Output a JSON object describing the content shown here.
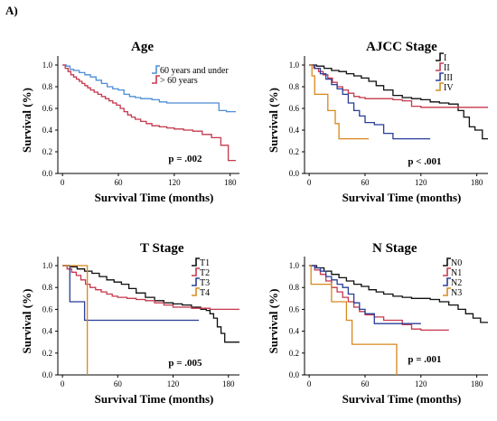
{
  "figure_label": "A)",
  "chart_data": [
    {
      "type": "line",
      "title": "Age",
      "xlabel": "Survival Time (months)",
      "ylabel": "Survival (%)",
      "xlim": [
        -5,
        190
      ],
      "ylim": [
        0,
        1.05
      ],
      "xticks": [
        0,
        60,
        120,
        180
      ],
      "yticks": [
        0.0,
        0.2,
        0.4,
        0.6,
        0.8,
        1.0
      ],
      "legend_position": "top-right",
      "grid": false,
      "annotation": "p = .002",
      "series": [
        {
          "name": "60 years and under",
          "color": "#4f8fd6",
          "x": [
            0,
            4,
            8,
            12,
            18,
            24,
            30,
            36,
            42,
            48,
            54,
            60,
            66,
            72,
            78,
            84,
            90,
            96,
            104,
            112,
            120,
            132,
            144,
            156,
            168,
            176,
            186
          ],
          "y": [
            1.0,
            0.99,
            0.96,
            0.95,
            0.93,
            0.91,
            0.89,
            0.86,
            0.83,
            0.8,
            0.78,
            0.77,
            0.73,
            0.71,
            0.7,
            0.69,
            0.69,
            0.68,
            0.66,
            0.65,
            0.65,
            0.65,
            0.65,
            0.65,
            0.58,
            0.57,
            0.57
          ]
        },
        {
          "name": "> 60 years",
          "color": "#c63a4e",
          "x": [
            0,
            3,
            6,
            9,
            12,
            15,
            18,
            21,
            24,
            27,
            30,
            34,
            38,
            42,
            46,
            50,
            54,
            58,
            62,
            66,
            70,
            74,
            78,
            84,
            90,
            96,
            104,
            112,
            120,
            130,
            140,
            150,
            160,
            170,
            178,
            186
          ],
          "y": [
            1.0,
            0.97,
            0.94,
            0.91,
            0.89,
            0.87,
            0.85,
            0.83,
            0.81,
            0.79,
            0.77,
            0.75,
            0.73,
            0.71,
            0.69,
            0.67,
            0.65,
            0.63,
            0.6,
            0.57,
            0.54,
            0.52,
            0.5,
            0.48,
            0.46,
            0.44,
            0.43,
            0.42,
            0.41,
            0.4,
            0.39,
            0.36,
            0.33,
            0.26,
            0.12,
            0.12
          ]
        }
      ]
    },
    {
      "type": "line",
      "title": "AJCC Stage",
      "xlabel": "Survival Time (months)",
      "ylabel": "Survival (%)",
      "xlim": [
        -5,
        192
      ],
      "ylim": [
        0,
        1.05
      ],
      "xticks": [
        0,
        60,
        120,
        180
      ],
      "yticks": [
        0.0,
        0.2,
        0.4,
        0.6,
        0.8,
        1.0
      ],
      "legend_position": "top-right",
      "grid": false,
      "annotation": "p < .001",
      "series": [
        {
          "name": "I",
          "color": "#111111",
          "x": [
            0,
            8,
            16,
            24,
            32,
            40,
            48,
            56,
            64,
            72,
            80,
            90,
            100,
            110,
            120,
            130,
            140,
            150,
            160,
            166,
            172,
            178,
            186,
            192
          ],
          "y": [
            1.0,
            0.99,
            0.97,
            0.95,
            0.94,
            0.92,
            0.9,
            0.88,
            0.85,
            0.81,
            0.77,
            0.72,
            0.7,
            0.69,
            0.68,
            0.66,
            0.65,
            0.64,
            0.58,
            0.52,
            0.43,
            0.4,
            0.32,
            0.32
          ]
        },
        {
          "name": "II",
          "color": "#c63a4e",
          "x": [
            0,
            5,
            10,
            15,
            20,
            25,
            30,
            36,
            42,
            48,
            54,
            60,
            70,
            80,
            90,
            100,
            110,
            120,
            140,
            160,
            180,
            192
          ],
          "y": [
            1.0,
            0.97,
            0.94,
            0.91,
            0.88,
            0.84,
            0.8,
            0.77,
            0.74,
            0.71,
            0.7,
            0.69,
            0.69,
            0.69,
            0.68,
            0.67,
            0.62,
            0.61,
            0.61,
            0.61,
            0.61,
            0.61
          ]
        },
        {
          "name": "III",
          "color": "#2a3f9a",
          "x": [
            0,
            6,
            12,
            18,
            24,
            30,
            36,
            42,
            48,
            54,
            60,
            70,
            80,
            90,
            100,
            110,
            120,
            130
          ],
          "y": [
            1.0,
            0.97,
            0.92,
            0.87,
            0.82,
            0.78,
            0.73,
            0.65,
            0.58,
            0.53,
            0.47,
            0.45,
            0.37,
            0.32,
            0.32,
            0.32,
            0.32,
            0.32
          ]
        },
        {
          "name": "IV",
          "color": "#d88a20",
          "x": [
            0,
            3,
            6,
            12,
            20,
            24,
            28,
            32,
            36,
            48,
            64
          ],
          "y": [
            1.0,
            0.9,
            0.73,
            0.73,
            0.58,
            0.58,
            0.46,
            0.32,
            0.32,
            0.32,
            0.32
          ]
        }
      ]
    },
    {
      "type": "line",
      "title": "T Stage",
      "xlabel": "Survival Time (months)",
      "ylabel": "Survival (%)",
      "xlim": [
        -5,
        192
      ],
      "ylim": [
        0,
        1.05
      ],
      "xticks": [
        0,
        60,
        120,
        180
      ],
      "yticks": [
        0.0,
        0.2,
        0.4,
        0.6,
        0.8,
        1.0
      ],
      "legend_position": "top-right",
      "grid": false,
      "annotation": "p = .005",
      "series": [
        {
          "name": "T1",
          "color": "#111111",
          "x": [
            0,
            8,
            16,
            24,
            32,
            40,
            48,
            56,
            64,
            72,
            80,
            90,
            100,
            110,
            120,
            130,
            140,
            150,
            156,
            160,
            164,
            168,
            172,
            176,
            184,
            192
          ],
          "y": [
            1.0,
            0.99,
            0.97,
            0.95,
            0.93,
            0.9,
            0.87,
            0.85,
            0.83,
            0.79,
            0.75,
            0.71,
            0.68,
            0.66,
            0.65,
            0.64,
            0.62,
            0.6,
            0.59,
            0.56,
            0.52,
            0.44,
            0.38,
            0.3,
            0.3,
            0.3
          ]
        },
        {
          "name": "T2",
          "color": "#c63a4e",
          "x": [
            0,
            5,
            10,
            15,
            20,
            25,
            30,
            36,
            42,
            48,
            54,
            60,
            70,
            80,
            90,
            100,
            110,
            120,
            140,
            160,
            180,
            192
          ],
          "y": [
            1.0,
            0.97,
            0.94,
            0.91,
            0.87,
            0.83,
            0.8,
            0.78,
            0.76,
            0.74,
            0.72,
            0.71,
            0.7,
            0.69,
            0.68,
            0.66,
            0.64,
            0.62,
            0.61,
            0.6,
            0.6,
            0.6
          ]
        },
        {
          "name": "T3",
          "color": "#2a3f9a",
          "x": [
            0,
            6,
            8,
            20,
            24,
            60,
            100,
            148
          ],
          "y": [
            1.0,
            1.0,
            0.67,
            0.67,
            0.5,
            0.5,
            0.5,
            0.5
          ]
        },
        {
          "name": "T4",
          "color": "#d88a20",
          "x": [
            0,
            12,
            20,
            26,
            27
          ],
          "y": [
            1.0,
            1.0,
            1.0,
            1.0,
            0.0
          ]
        }
      ]
    },
    {
      "type": "line",
      "title": "N Stage",
      "xlabel": "Survival Time (months)",
      "ylabel": "Survival (%)",
      "xlim": [
        -5,
        192
      ],
      "ylim": [
        0,
        1.05
      ],
      "xticks": [
        0,
        60,
        120,
        180
      ],
      "yticks": [
        0.0,
        0.2,
        0.4,
        0.6,
        0.8,
        1.0
      ],
      "legend_position": "top-right",
      "grid": false,
      "annotation": "p = .001",
      "series": [
        {
          "name": "N0",
          "color": "#111111",
          "x": [
            0,
            8,
            16,
            24,
            32,
            40,
            48,
            56,
            64,
            72,
            80,
            90,
            100,
            110,
            120,
            130,
            140,
            150,
            160,
            168,
            176,
            184,
            192
          ],
          "y": [
            1.0,
            0.98,
            0.95,
            0.92,
            0.89,
            0.86,
            0.83,
            0.81,
            0.78,
            0.76,
            0.74,
            0.72,
            0.71,
            0.7,
            0.7,
            0.69,
            0.67,
            0.64,
            0.6,
            0.56,
            0.52,
            0.48,
            0.48
          ]
        },
        {
          "name": "N1",
          "color": "#c63a4e",
          "x": [
            0,
            6,
            12,
            18,
            24,
            30,
            36,
            42,
            48,
            54,
            60,
            70,
            80,
            90,
            100,
            110,
            120,
            130,
            150
          ],
          "y": [
            1.0,
            0.96,
            0.92,
            0.86,
            0.8,
            0.76,
            0.71,
            0.67,
            0.62,
            0.58,
            0.55,
            0.53,
            0.5,
            0.5,
            0.46,
            0.42,
            0.41,
            0.41,
            0.41
          ]
        },
        {
          "name": "N2",
          "color": "#2a3f9a",
          "x": [
            0,
            6,
            12,
            18,
            24,
            30,
            36,
            42,
            48,
            54,
            60,
            70,
            80,
            90,
            100,
            110,
            120
          ],
          "y": [
            1.0,
            0.98,
            0.95,
            0.9,
            0.87,
            0.83,
            0.8,
            0.74,
            0.66,
            0.6,
            0.56,
            0.47,
            0.47,
            0.47,
            0.47,
            0.47,
            0.47
          ]
        },
        {
          "name": "N3",
          "color": "#d88a20",
          "x": [
            0,
            2,
            5,
            20,
            24,
            28,
            40,
            46,
            70,
            90,
            94
          ],
          "y": [
            1.0,
            0.83,
            0.83,
            0.83,
            0.67,
            0.67,
            0.5,
            0.28,
            0.28,
            0.28,
            0.0
          ]
        }
      ]
    }
  ]
}
